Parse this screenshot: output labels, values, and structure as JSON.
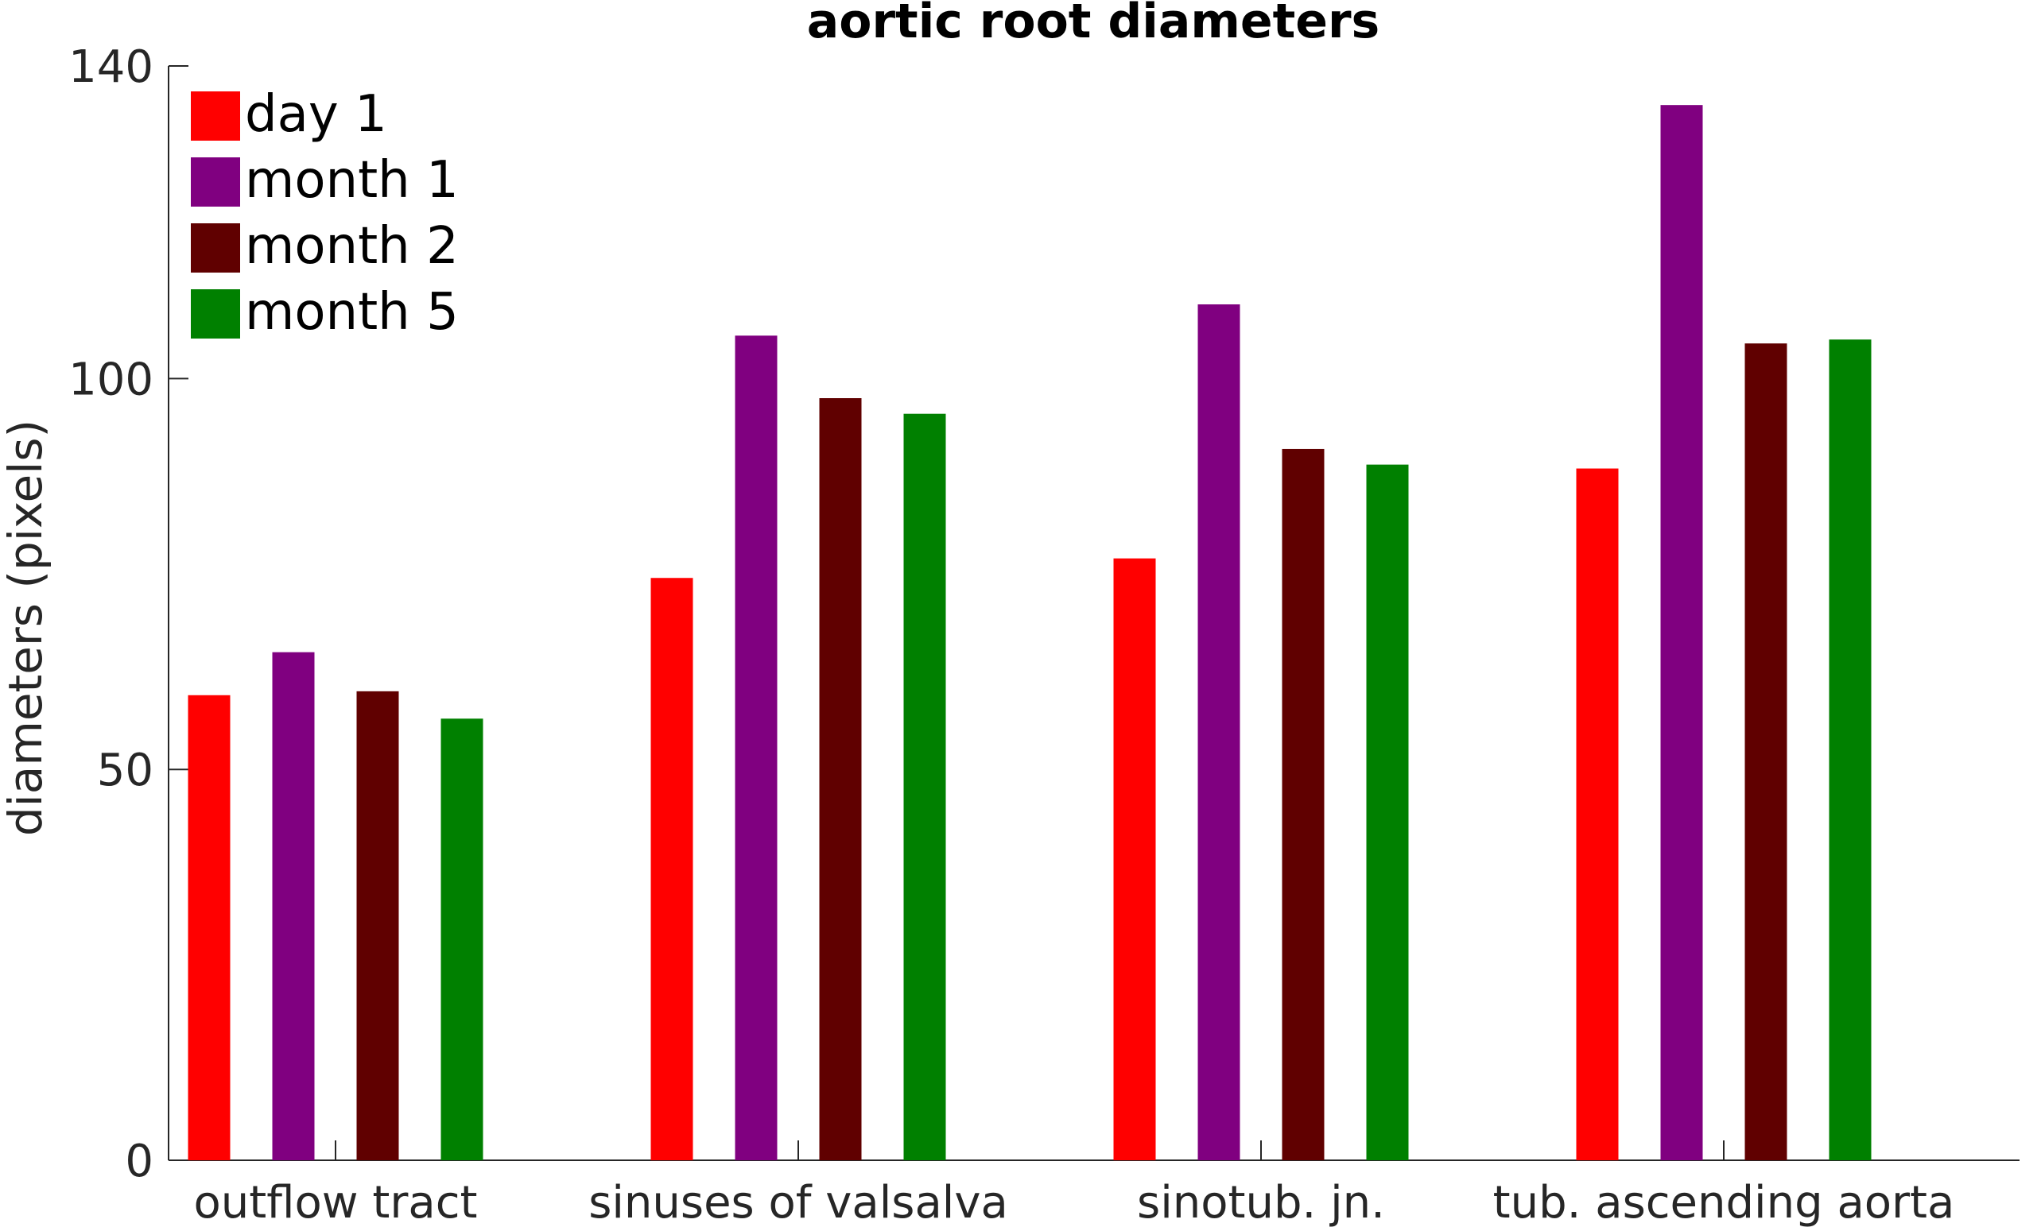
{
  "chart_data": {
    "type": "bar",
    "title": "aortic root diameters",
    "xlabel": "",
    "ylabel": "diameters (pixels)",
    "ylim": [
      0,
      140
    ],
    "yticks": [
      0,
      50,
      100,
      140
    ],
    "grid": false,
    "legend_position": "top-left",
    "categories": [
      "outflow tract",
      "sinuses of valsalva",
      "sinotub. jn.",
      "tub. ascending aorta"
    ],
    "series": [
      {
        "name": "day 1",
        "color": "#ff0000",
        "values": [
          59.5,
          74.5,
          77.0,
          88.5
        ]
      },
      {
        "name": "month 1",
        "color": "#800080",
        "values": [
          65.0,
          105.5,
          109.5,
          135.0
        ]
      },
      {
        "name": "month 2",
        "color": "#600000",
        "values": [
          60.0,
          97.5,
          91.0,
          104.5
        ]
      },
      {
        "name": "month 5",
        "color": "#008000",
        "values": [
          56.5,
          95.5,
          89.0,
          105.0
        ]
      }
    ]
  }
}
